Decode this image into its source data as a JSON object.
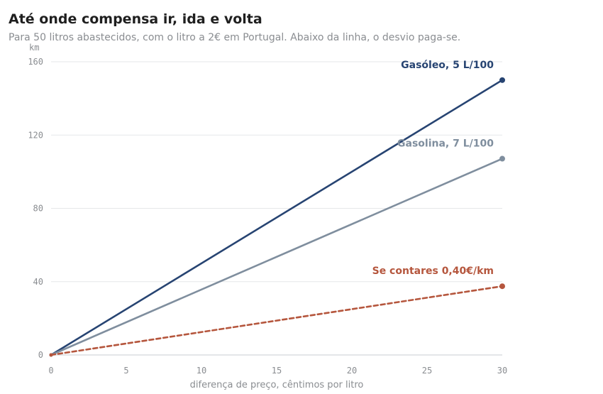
{
  "header": {
    "title": "Até onde compensa ir, ida e volta",
    "subtitle": "Para 50 litros abastecidos, com o litro a 2€ em Portugal. Abaixo da linha, o desvio paga-se."
  },
  "chart_data": {
    "type": "line",
    "x": [
      0,
      30
    ],
    "xlabel": "diferença de preço, cêntimos por litro",
    "ylabel": "km",
    "xlim": [
      0,
      30
    ],
    "ylim": [
      0,
      160
    ],
    "xticks": [
      "0",
      "5",
      "10",
      "15",
      "20",
      "25",
      "30"
    ],
    "yticks": [
      "0",
      "40",
      "80",
      "120",
      "160"
    ],
    "grid": true,
    "series": [
      {
        "name": "Gasóleo, 5 L/100",
        "values": [
          0,
          150
        ],
        "color": "#274472",
        "dashed": false
      },
      {
        "name": "Gasolina, 7 L/100",
        "values": [
          0,
          107.1
        ],
        "color": "#7f8e9e",
        "dashed": false
      },
      {
        "name": "Se contares 0,40€/km",
        "values": [
          0,
          37.5
        ],
        "color": "#b5563d",
        "dashed": true
      }
    ]
  }
}
